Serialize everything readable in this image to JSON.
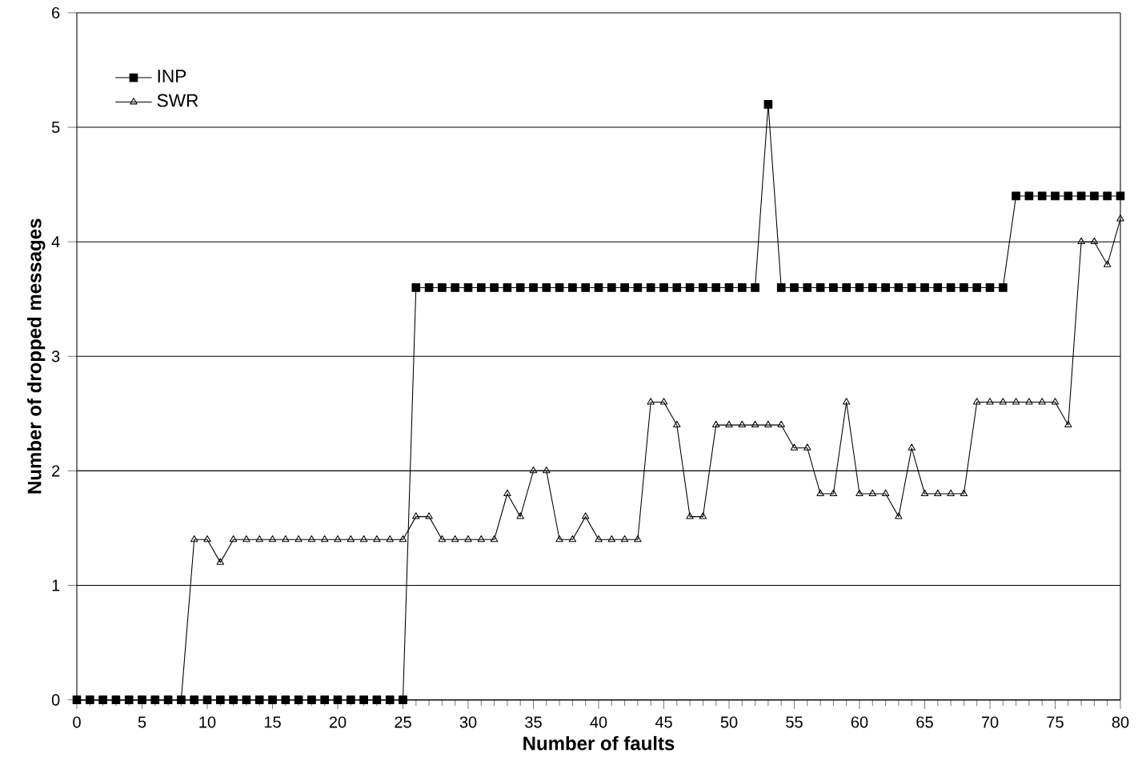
{
  "chart_data": {
    "type": "line",
    "xlabel": "Number of faults",
    "ylabel": "Number of dropped messages",
    "x": [
      0,
      1,
      2,
      3,
      4,
      5,
      6,
      7,
      8,
      9,
      10,
      11,
      12,
      13,
      14,
      15,
      16,
      17,
      18,
      19,
      20,
      21,
      22,
      23,
      24,
      25,
      26,
      27,
      28,
      29,
      30,
      31,
      32,
      33,
      34,
      35,
      36,
      37,
      38,
      39,
      40,
      41,
      42,
      43,
      44,
      45,
      46,
      47,
      48,
      49,
      50,
      51,
      52,
      53,
      54,
      55,
      56,
      57,
      58,
      59,
      60,
      61,
      62,
      63,
      64,
      65,
      66,
      67,
      68,
      69,
      70,
      71,
      72,
      73,
      74,
      75,
      76,
      77,
      78,
      79,
      80
    ],
    "series": [
      {
        "name": "INP",
        "color": "#000000",
        "marker": "square",
        "values": [
          0,
          0,
          0,
          0,
          0,
          0,
          0,
          0,
          0,
          0,
          0,
          0,
          0,
          0,
          0,
          0,
          0,
          0,
          0,
          0,
          0,
          0,
          0,
          0,
          0,
          0,
          3.6,
          3.6,
          3.6,
          3.6,
          3.6,
          3.6,
          3.6,
          3.6,
          3.6,
          3.6,
          3.6,
          3.6,
          3.6,
          3.6,
          3.6,
          3.6,
          3.6,
          3.6,
          3.6,
          3.6,
          3.6,
          3.6,
          3.6,
          3.6,
          3.6,
          3.6,
          3.6,
          5.2,
          3.6,
          3.6,
          3.6,
          3.6,
          3.6,
          3.6,
          3.6,
          3.6,
          3.6,
          3.6,
          3.6,
          3.6,
          3.6,
          3.6,
          3.6,
          3.6,
          3.6,
          3.6,
          4.4,
          4.4,
          4.4,
          4.4,
          4.4,
          4.4,
          4.4,
          4.4,
          4.4
        ]
      },
      {
        "name": "SWR",
        "color": "#000000",
        "marker": "triangle",
        "values": [
          0,
          0,
          0,
          0,
          0,
          0,
          0,
          0,
          0,
          1.4,
          1.4,
          1.2,
          1.4,
          1.4,
          1.4,
          1.4,
          1.4,
          1.4,
          1.4,
          1.4,
          1.4,
          1.4,
          1.4,
          1.4,
          1.4,
          1.4,
          1.6,
          1.6,
          1.4,
          1.4,
          1.4,
          1.4,
          1.4,
          1.8,
          1.6,
          2.0,
          2.0,
          1.4,
          1.4,
          1.6,
          1.4,
          1.4,
          1.4,
          1.4,
          2.6,
          2.6,
          2.4,
          1.6,
          1.6,
          2.4,
          2.4,
          2.4,
          2.4,
          2.4,
          2.4,
          2.2,
          2.2,
          1.8,
          1.8,
          2.6,
          1.8,
          1.8,
          1.8,
          1.6,
          2.2,
          1.8,
          1.8,
          1.8,
          1.8,
          2.6,
          2.6,
          2.6,
          2.6,
          2.6,
          2.6,
          2.6,
          2.4,
          4.0,
          4.0,
          3.8,
          4.2
        ]
      }
    ],
    "xlim": [
      0,
      80
    ],
    "ylim": [
      0,
      6
    ],
    "xticks": [
      0,
      5,
      10,
      15,
      20,
      25,
      30,
      35,
      40,
      45,
      50,
      55,
      60,
      65,
      70,
      75,
      80
    ],
    "yticks": [
      0,
      1,
      2,
      3,
      4,
      5,
      6
    ],
    "grid": "y",
    "legend": "top left",
    "line_style": "solid"
  }
}
